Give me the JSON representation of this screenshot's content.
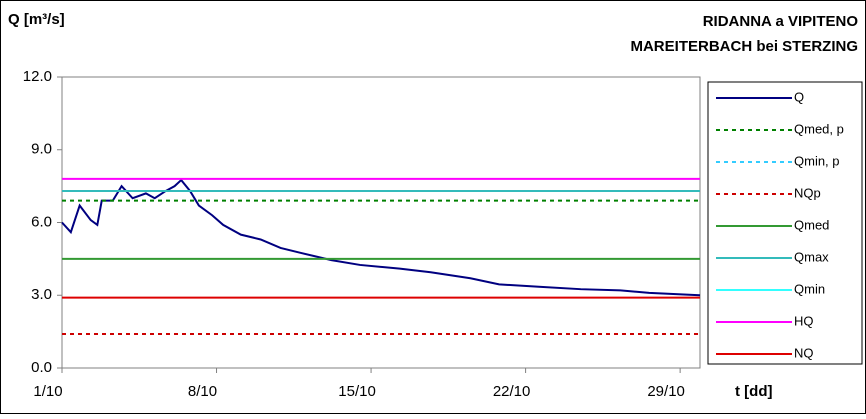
{
  "chart_data": {
    "type": "line",
    "title": "RIDANNA a VIPITENO",
    "subtitle": "MAREITERBACH bei STERZING",
    "y_label": "Q [m³/s]",
    "x_label": "t [dd]",
    "xlim": [
      1,
      29.9
    ],
    "xticks": [
      {
        "value": 1,
        "label": "1/10"
      },
      {
        "value": 8,
        "label": "8/10"
      },
      {
        "value": 15,
        "label": "15/10"
      },
      {
        "value": 22,
        "label": "22/10"
      },
      {
        "value": 29,
        "label": "29/10"
      }
    ],
    "ylim": [
      0,
      12
    ],
    "yticks": [
      {
        "value": 0,
        "label": "0.0"
      },
      {
        "value": 3,
        "label": "3.0"
      },
      {
        "value": 6,
        "label": "6.0"
      },
      {
        "value": 9,
        "label": "9.0"
      },
      {
        "value": 12,
        "label": "12.0"
      }
    ],
    "x": [
      1,
      1.4,
      1.8,
      2.3,
      2.6,
      2.8,
      3.3,
      3.7,
      4.2,
      4.8,
      5.2,
      5.7,
      6.1,
      6.4,
      6.8,
      7.2,
      7.8,
      8.3,
      9.1,
      10,
      10.9,
      11.8,
      13.2,
      14.5,
      16.3,
      17.7,
      19.5,
      20.8,
      22.6,
      24.5,
      26.3,
      27.6,
      29.9
    ],
    "series": [
      {
        "name": "Q",
        "color": "#000080",
        "dash": false,
        "values": [
          6.0,
          5.6,
          6.7,
          6.1,
          5.9,
          6.9,
          6.9,
          7.5,
          7.0,
          7.2,
          7.0,
          7.3,
          7.5,
          7.75,
          7.3,
          6.7,
          6.3,
          5.9,
          5.5,
          5.3,
          4.95,
          4.75,
          4.45,
          4.25,
          4.1,
          3.95,
          3.7,
          3.45,
          3.35,
          3.25,
          3.2,
          3.1,
          3.0
        ]
      },
      {
        "name": "Qmed, p",
        "color": "#008000",
        "dash": true,
        "level": 6.9
      },
      {
        "name": "Qmin, p",
        "color": "#33ccff",
        "dash": true,
        "level": null
      },
      {
        "name": "NQp",
        "color": "#cc0000",
        "dash": true,
        "level": 1.4
      },
      {
        "name": "Qmed",
        "color": "#339933",
        "dash": false,
        "level": 4.5
      },
      {
        "name": "Qmax",
        "color": "#33bbbb",
        "dash": false,
        "level": 7.3
      },
      {
        "name": "Qmin",
        "color": "#33ffff",
        "dash": false,
        "level": null
      },
      {
        "name": "HQ",
        "color": "#ff00ff",
        "dash": false,
        "level": 7.8
      },
      {
        "name": "NQ",
        "color": "#dd0000",
        "dash": false,
        "level": 2.9
      }
    ],
    "grid": false
  }
}
